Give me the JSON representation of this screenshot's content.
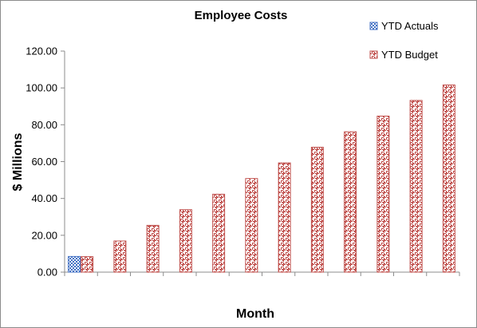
{
  "chart_data": {
    "type": "bar",
    "title": "Employee Costs",
    "xlabel": "Month",
    "ylabel": "$ Millions",
    "ylim": [
      0,
      120
    ],
    "yticks": [
      "0.00",
      "20.00",
      "40.00",
      "60.00",
      "80.00",
      "100.00",
      "120.00"
    ],
    "grid": false,
    "legend_position": "top-right",
    "categories": [
      "",
      "",
      "",
      "",
      "",
      "",
      "",
      "",
      "",
      "",
      "",
      ""
    ],
    "series": [
      {
        "name": "YTD Actuals",
        "color": "#4472C4",
        "pattern": "checker",
        "values": [
          8.5,
          null,
          null,
          null,
          null,
          null,
          null,
          null,
          null,
          null,
          null,
          null
        ]
      },
      {
        "name": "YTD Budget",
        "color": "#C0504D",
        "pattern": "woven",
        "values": [
          8.4,
          16.9,
          25.4,
          33.9,
          42.3,
          50.8,
          59.3,
          67.8,
          76.2,
          84.7,
          93.2,
          101.6
        ]
      }
    ]
  }
}
